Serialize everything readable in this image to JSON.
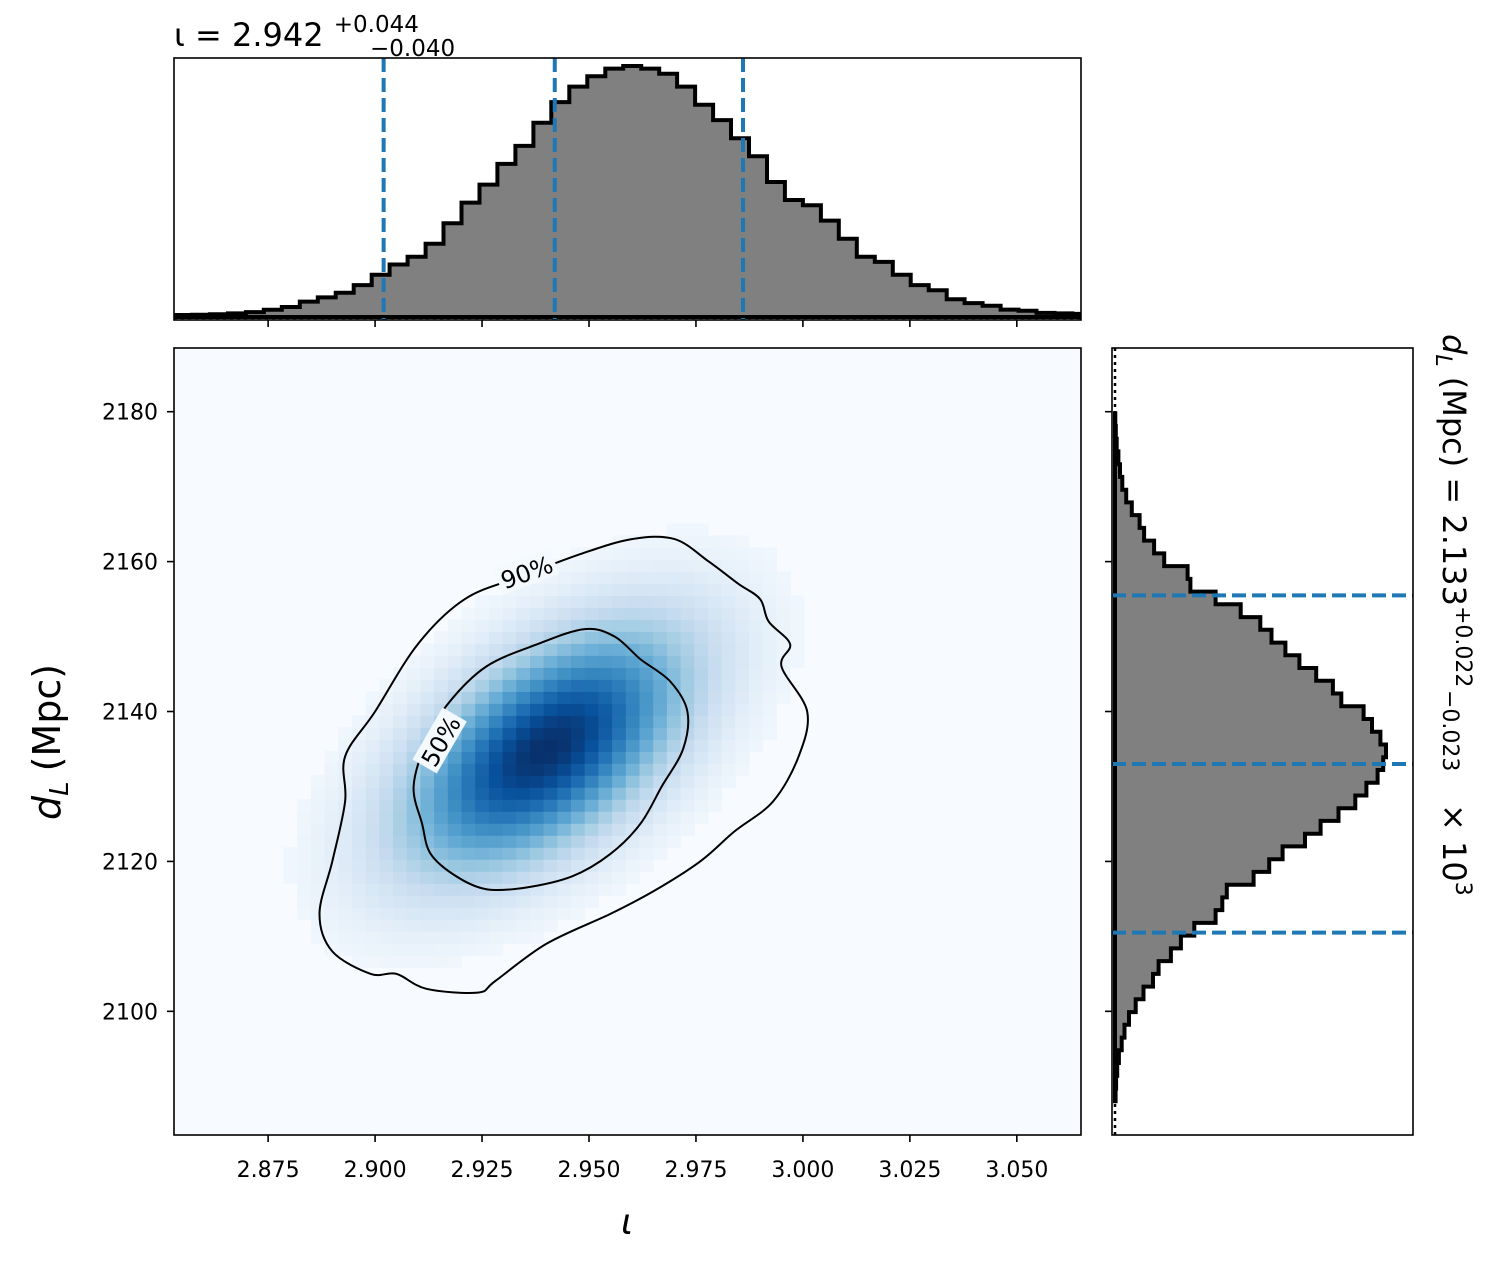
{
  "chart_data": [
    {
      "type": "histogram",
      "panel": "top-marginal",
      "title_main": "ι = 2.942",
      "title_sup": "+0.044",
      "title_sub": "−0.040",
      "xlim": [
        2.853,
        3.065
      ],
      "x_ticks": [
        2.875,
        2.9,
        2.925,
        2.95,
        2.975,
        3.0,
        3.025,
        3.05
      ],
      "bin_start": 2.853,
      "bin_width": 0.0042,
      "counts": [
        0.4,
        0.5,
        0.7,
        1.0,
        1.5,
        2.4,
        3.5,
        5.6,
        7.2,
        9.0,
        12.0,
        16.0,
        20.0,
        23.0,
        28.0,
        36.0,
        44.0,
        51.0,
        59.0,
        66.0,
        75.0,
        83.0,
        89.0,
        93.0,
        96.0,
        97.0,
        96.0,
        94.0,
        89.0,
        82.0,
        76.0,
        69.0,
        62.0,
        52.0,
        45.0,
        43.0,
        37.0,
        30.0,
        23.0,
        21.0,
        16.0,
        12.0,
        10.0,
        6.5,
        5.0,
        4.0,
        2.5,
        2.0,
        1.2,
        1.0,
        0.8,
        0.6,
        0.5,
        0.4,
        0.3,
        0.3,
        0.2,
        0.2,
        0.1,
        0.1
      ],
      "fill_color": "#808080",
      "quantile_lines": [
        2.902,
        2.942,
        2.986
      ],
      "quantile_color": "#1f77b4"
    },
    {
      "type": "heatmap",
      "panel": "joint",
      "xlabel": "ι",
      "ylabel_main": "d",
      "ylabel_sub": "L",
      "ylabel_unit": "(Mpc)",
      "xlim": [
        2.853,
        3.065
      ],
      "ylim": [
        2083.5,
        2188.5
      ],
      "x_ticks": [
        2.875,
        2.9,
        2.925,
        2.95,
        2.975,
        3.0,
        3.025,
        3.05
      ],
      "y_ticks": [
        2100,
        2120,
        2140,
        2160,
        2180
      ],
      "colormap": "Blues",
      "peak": {
        "x": 2.94,
        "y": 2135
      },
      "contours": [
        {
          "label": "50%",
          "points": [
            [
              2.911,
              2125
            ],
            [
              2.909,
              2130
            ],
            [
              2.912,
              2136
            ],
            [
              2.917,
              2141
            ],
            [
              2.926,
              2146
            ],
            [
              2.938,
              2149
            ],
            [
              2.949,
              2151
            ],
            [
              2.956,
              2150
            ],
            [
              2.962,
              2147
            ],
            [
              2.969,
              2144
            ],
            [
              2.973,
              2140
            ],
            [
              2.972,
              2135
            ],
            [
              2.967,
              2130
            ],
            [
              2.962,
              2125
            ],
            [
              2.955,
              2121
            ],
            [
              2.946,
              2118
            ],
            [
              2.935,
              2116.5
            ],
            [
              2.926,
              2116.3
            ],
            [
              2.919,
              2118
            ],
            [
              2.913,
              2121
            ]
          ]
        },
        {
          "label": "90%",
          "points": [
            [
              2.89,
              2120
            ],
            [
              2.893,
              2128
            ],
            [
              2.893,
              2134
            ],
            [
              2.9,
              2140
            ],
            [
              2.91,
              2149
            ],
            [
              2.921,
              2155
            ],
            [
              2.934,
              2158
            ],
            [
              2.948,
              2161
            ],
            [
              2.96,
              2163
            ],
            [
              2.97,
              2163
            ],
            [
              2.978,
              2160
            ],
            [
              2.985,
              2157
            ],
            [
              2.99,
              2155
            ],
            [
              2.992,
              2152
            ],
            [
              2.997,
              2149
            ],
            [
              2.995,
              2146
            ],
            [
              3.001,
              2140
            ],
            [
              2.999,
              2134
            ],
            [
              2.993,
              2128
            ],
            [
              2.984,
              2124
            ],
            [
              2.976,
              2120
            ],
            [
              2.965,
              2116
            ],
            [
              2.955,
              2113
            ],
            [
              2.94,
              2109
            ],
            [
              2.928,
              2104
            ],
            [
              2.924,
              2102.5
            ],
            [
              2.912,
              2103
            ],
            [
              2.905,
              2105
            ],
            [
              2.899,
              2105
            ],
            [
              2.89,
              2108
            ],
            [
              2.887,
              2113
            ]
          ]
        }
      ]
    },
    {
      "type": "histogram",
      "orientation": "horizontal",
      "panel": "right-marginal",
      "title_main": "d",
      "title_sub_letter": "L",
      "title_rest": " (Mpc) = 2.133",
      "title_sup": "+0.022",
      "title_sub": "−0.023",
      "title_tail": " × 10",
      "title_exp": "3",
      "ylim": [
        2083.5,
        2188.5
      ],
      "y_ticks": [
        2100,
        2120,
        2140,
        2160,
        2180
      ],
      "bin_start": 2088,
      "bin_width": 1.7,
      "counts": [
        0.2,
        0.4,
        0.8,
        1.4,
        2.4,
        3.4,
        5.0,
        7.4,
        10.2,
        13.6,
        15.6,
        20.0,
        23.6,
        28.4,
        36.0,
        38.4,
        40.0,
        49.6,
        55.2,
        60.0,
        68.0,
        73.6,
        80.0,
        86.0,
        90.0,
        94.0,
        96.0,
        97.0,
        95.0,
        92.0,
        89.0,
        81.0,
        78.0,
        72.0,
        66.0,
        61.0,
        56.0,
        52.0,
        45.0,
        36.0,
        27.0,
        26.0,
        17.6,
        14.0,
        10.4,
        8.8,
        6.0,
        4.0,
        2.6,
        1.8,
        1.2,
        0.6,
        0.3,
        0.1
      ],
      "fill_color": "#808080",
      "quantile_lines": [
        2110.5,
        2133.0,
        2155.5
      ],
      "quantile_color": "#1f77b4"
    }
  ]
}
